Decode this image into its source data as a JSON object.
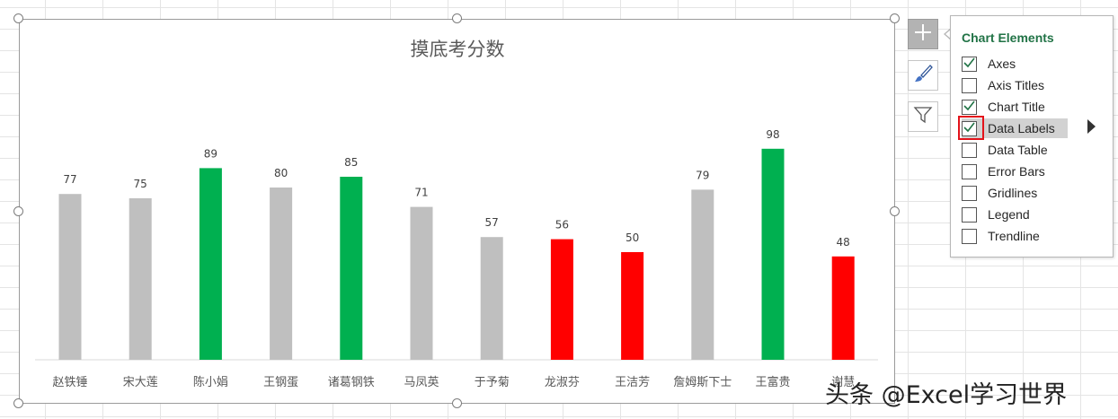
{
  "chart_data": {
    "type": "bar",
    "title": "摸底考分数",
    "categories": [
      "赵铁锤",
      "宋大莲",
      "陈小娟",
      "王钢蛋",
      "诸葛钢铁",
      "马凤英",
      "于予菊",
      "龙淑芬",
      "王洁芳",
      "詹姆斯下士",
      "王富贵",
      "谢慧"
    ],
    "values": [
      77,
      75,
      89,
      80,
      85,
      71,
      57,
      56,
      50,
      79,
      98,
      48
    ],
    "bar_colors": [
      "#bfbfbf",
      "#bfbfbf",
      "#00b050",
      "#bfbfbf",
      "#00b050",
      "#bfbfbf",
      "#bfbfbf",
      "#ff0000",
      "#ff0000",
      "#bfbfbf",
      "#00b050",
      "#ff0000"
    ],
    "data_labels": true,
    "gridlines": false,
    "ylim": [
      0,
      100
    ]
  },
  "side_buttons": [
    {
      "name": "chart-elements-button",
      "icon": "plus-icon",
      "active": true
    },
    {
      "name": "chart-styles-button",
      "icon": "paintbrush-icon",
      "active": false
    },
    {
      "name": "chart-filters-button",
      "icon": "funnel-icon",
      "active": false
    }
  ],
  "panel": {
    "title": "Chart Elements",
    "items": [
      {
        "label": "Axes",
        "checked": true
      },
      {
        "label": "Axis Titles",
        "checked": false
      },
      {
        "label": "Chart Title",
        "checked": true
      },
      {
        "label": "Data Labels",
        "checked": true
      },
      {
        "label": "Data Table",
        "checked": false
      },
      {
        "label": "Error Bars",
        "checked": false
      },
      {
        "label": "Gridlines",
        "checked": false
      },
      {
        "label": "Legend",
        "checked": false
      },
      {
        "label": "Trendline",
        "checked": false
      }
    ]
  },
  "colors": {
    "accent": "#217346",
    "check": "#217346",
    "highlight": "#d2d2d2",
    "callout": "#e3131b"
  },
  "watermark": "头条 @Excel学习世界"
}
